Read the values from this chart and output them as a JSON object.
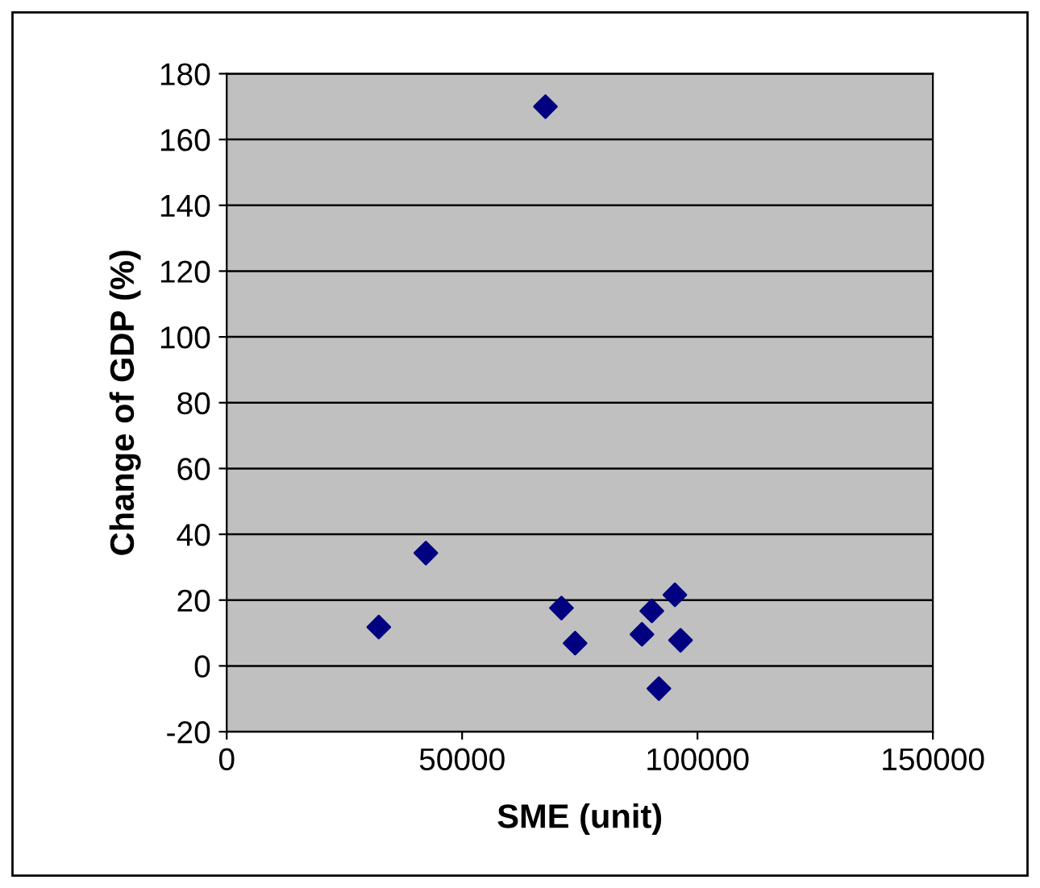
{
  "chart_data": {
    "type": "scatter",
    "xlabel": "SME (unit)",
    "ylabel": "Change of GDP (%)",
    "x": [
      32300,
      42300,
      67700,
      71100,
      74000,
      88200,
      90300,
      91800,
      95200,
      96400
    ],
    "series": [
      {
        "color": "#000080",
        "values": [
          11.8,
          34.3,
          170,
          17.6,
          6.9,
          9.6,
          16.7,
          -6.9,
          21.6,
          7.8
        ]
      }
    ],
    "marker": "diamond",
    "grid": "y",
    "legend": false,
    "xlim": [
      0,
      150000
    ],
    "xticks": [
      0,
      50000,
      100000,
      150000
    ],
    "ylim": [
      -20,
      180
    ],
    "yticks": [
      -20,
      0,
      20,
      40,
      60,
      80,
      100,
      120,
      140,
      160,
      180
    ]
  }
}
